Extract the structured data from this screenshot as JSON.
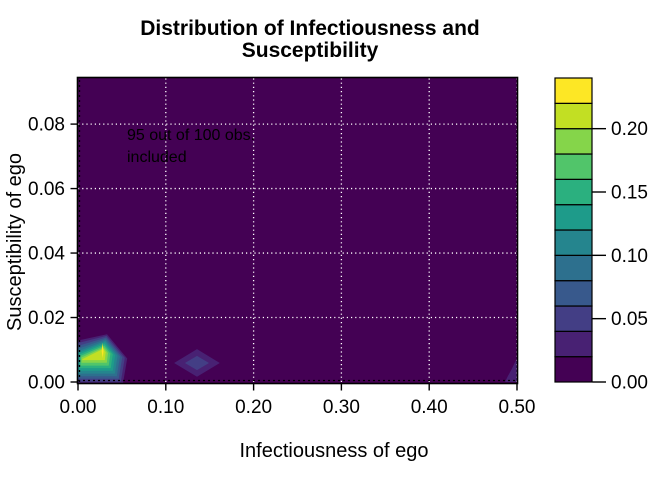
{
  "figure": {
    "background": "#ffffff",
    "title_lines": [
      "Distribution of Infectiousness and",
      "Susceptibility"
    ],
    "x_axis_label": "Infectiousness of ego",
    "y_axis_label": "Susceptibility of ego",
    "annotation_lines": [
      "95 out of 100 obs.",
      "included"
    ]
  },
  "chart_data": {
    "type": "heatmap",
    "subtype": "filled_contour",
    "title": "Distribution of Infectiousness and Susceptibility",
    "xlabel": "Infectiousness of ego",
    "ylabel": "Susceptibility of ego",
    "annotation": "95 out of 100 obs. included",
    "x_range": [
      0,
      0.5
    ],
    "y_range": [
      0,
      0.0943
    ],
    "x_ticks": [
      {
        "v": 0.0,
        "label": "0.00"
      },
      {
        "v": 0.1,
        "label": "0.10"
      },
      {
        "v": 0.2,
        "label": "0.20"
      },
      {
        "v": 0.3,
        "label": "0.30"
      },
      {
        "v": 0.4,
        "label": "0.40"
      },
      {
        "v": 0.5,
        "label": "0.50"
      }
    ],
    "y_ticks": [
      {
        "v": 0.0,
        "label": "0.00"
      },
      {
        "v": 0.02,
        "label": "0.02"
      },
      {
        "v": 0.04,
        "label": "0.04"
      },
      {
        "v": 0.06,
        "label": "0.06"
      },
      {
        "v": 0.08,
        "label": "0.08"
      }
    ],
    "levels": {
      "min": 0.0,
      "max": 0.24,
      "step": 0.02,
      "count": 12
    },
    "palette": [
      "#440154",
      "#482173",
      "#433E85",
      "#38598C",
      "#2D708E",
      "#25858E",
      "#1E9B8A",
      "#2BB07F",
      "#51C56A",
      "#85D54A",
      "#C2DF23",
      "#FDE725"
    ],
    "background_level_color": "#440154",
    "legend_ticks": [
      {
        "v": 0.0,
        "label": "0.00"
      },
      {
        "v": 0.05,
        "label": "0.05"
      },
      {
        "v": 0.1,
        "label": "0.10"
      },
      {
        "v": 0.15,
        "label": "0.15"
      },
      {
        "v": 0.2,
        "label": "0.20"
      }
    ],
    "grid": {
      "white_dotted_x": [
        0.1,
        0.2,
        0.3,
        0.4,
        0.5
      ],
      "white_dotted_y": [
        0.02,
        0.04,
        0.06,
        0.08
      ],
      "black_dotted_x": [
        0.0
      ],
      "black_dotted_y": [
        0.0
      ],
      "white_color": "#ffffff",
      "black_color": "#000000"
    },
    "contours": [
      {
        "ci": 1,
        "pts": [
          [
            -0.015,
            0.012
          ],
          [
            0.033,
            0.0148
          ],
          [
            0.056,
            0.0073
          ],
          [
            0.051,
            -0.0007
          ],
          [
            -0.015,
            -0.0007
          ]
        ]
      },
      {
        "ci": 2,
        "pts": [
          [
            -0.01,
            0.0114
          ],
          [
            0.0325,
            0.0143
          ],
          [
            0.0533,
            0.0075
          ],
          [
            0.0487,
            0.0001
          ],
          [
            -0.01,
            0.0001
          ]
        ]
      },
      {
        "ci": 3,
        "pts": [
          [
            -0.005,
            0.0108
          ],
          [
            0.0321,
            0.0138
          ],
          [
            0.0505,
            0.0077
          ],
          [
            0.0464,
            0.001
          ],
          [
            -0.005,
            0.001
          ]
        ]
      },
      {
        "ci": 4,
        "pts": [
          [
            -0.001,
            0.0102
          ],
          [
            0.0316,
            0.0133
          ],
          [
            0.0478,
            0.0079
          ],
          [
            0.0442,
            0.0018
          ],
          [
            -0.001,
            0.0018
          ]
        ]
      },
      {
        "ci": 5,
        "pts": [
          [
            0.0005,
            0.0096
          ],
          [
            0.0312,
            0.0128
          ],
          [
            0.0451,
            0.0081
          ],
          [
            0.0419,
            0.0026
          ],
          [
            0.0005,
            0.0026
          ]
        ]
      },
      {
        "ci": 6,
        "pts": [
          [
            0.001,
            0.0091
          ],
          [
            0.0307,
            0.0123
          ],
          [
            0.0424,
            0.0083
          ],
          [
            0.0396,
            0.0035
          ],
          [
            0.001,
            0.0035
          ]
        ]
      },
      {
        "ci": 7,
        "pts": [
          [
            0.002,
            0.0086
          ],
          [
            0.0302,
            0.0118
          ],
          [
            0.0396,
            0.0086
          ],
          [
            0.0373,
            0.0043
          ],
          [
            0.002,
            0.0043
          ]
        ]
      },
      {
        "ci": 8,
        "pts": [
          [
            0.003,
            0.0081
          ],
          [
            0.0298,
            0.0113
          ],
          [
            0.0369,
            0.0088
          ],
          [
            0.035,
            0.0051
          ],
          [
            0.003,
            0.0051
          ]
        ]
      },
      {
        "ci": 9,
        "pts": [
          [
            0.004,
            0.0076
          ],
          [
            0.0293,
            0.0108
          ],
          [
            0.0342,
            0.009
          ],
          [
            0.0328,
            0.006
          ],
          [
            0.004,
            0.006
          ]
        ]
      },
      {
        "ci": 10,
        "pts": [
          [
            0.005,
            0.0071
          ],
          [
            0.0289,
            0.0103
          ],
          [
            0.0315,
            0.0092
          ],
          [
            0.0305,
            0.0068
          ],
          [
            0.005,
            0.0068
          ]
        ]
      },
      {
        "ci": 11,
        "pts": [
          [
            0.0279,
            0.0122
          ],
          [
            0.029,
            0.0095
          ],
          [
            0.0281,
            0.0074
          ],
          [
            0.027,
            0.0095
          ]
        ]
      },
      {
        "ci": 1,
        "pts": [
          [
            0.1095,
            0.0059
          ],
          [
            0.1355,
            0.0102
          ],
          [
            0.1615,
            0.0059
          ],
          [
            0.1355,
            0.0016
          ]
        ]
      },
      {
        "ci": 2,
        "pts": [
          [
            0.1218,
            0.0059
          ],
          [
            0.1355,
            0.0081
          ],
          [
            0.1492,
            0.0059
          ],
          [
            0.1355,
            0.0037
          ]
        ]
      },
      {
        "ci": 1,
        "pts": [
          [
            0.5,
            0.0074
          ],
          [
            0.494,
            0.004
          ],
          [
            0.4895,
            0.0018
          ],
          [
            0.4863,
            0.0
          ],
          [
            0.5,
            0.0
          ]
        ]
      }
    ]
  }
}
